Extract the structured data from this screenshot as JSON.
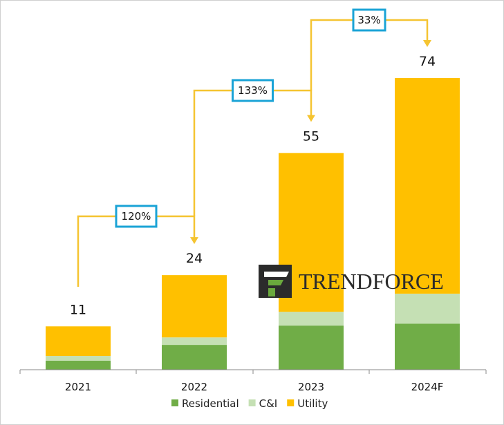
{
  "chart_data": {
    "type": "bar",
    "stacked": true,
    "categories": [
      "2021",
      "2022",
      "2023",
      "2024F"
    ],
    "series": [
      {
        "name": "Residential",
        "values": [
          2.3,
          6.3,
          11.2,
          11.7
        ]
      },
      {
        "name": "C&I",
        "values": [
          1.2,
          1.9,
          3.5,
          7.6
        ]
      },
      {
        "name": "Utility",
        "values": [
          7.5,
          15.8,
          40.3,
          54.7
        ]
      }
    ],
    "totals": [
      "11",
      "24",
      "55",
      "74"
    ],
    "growth_labels": [
      {
        "from": "2021",
        "to": "2022",
        "label": "120%"
      },
      {
        "from": "2022",
        "to": "2023",
        "label": "133%"
      },
      {
        "from": "2023",
        "to": "2024F",
        "label": "33%"
      }
    ],
    "title": "",
    "xlabel": "",
    "ylabel": "",
    "ylim": [
      0,
      74
    ],
    "grid": false,
    "legend_position": "bottom",
    "colors": {
      "Residential": "#70ad47",
      "C&I": "#c5e0b4",
      "Utility": "#ffc000",
      "growth_connector": "#f5c431",
      "growth_box_border": "#1aa3d6",
      "axis": "#888888"
    }
  },
  "watermark": {
    "text": "TRENDFORCE",
    "logo_icon": "trendforce-logo-icon"
  }
}
